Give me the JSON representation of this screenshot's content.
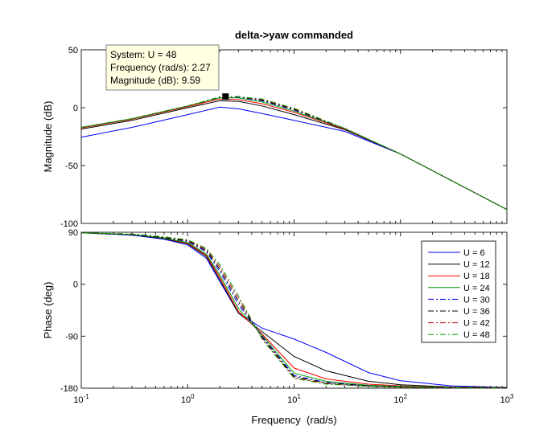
{
  "chart_data": [
    {
      "type": "line",
      "panel": "magnitude",
      "title": "delta->yaw commanded",
      "xlabel": "",
      "ylabel": "Magnitude (dB)",
      "xscale": "log",
      "xlim": [
        0.1,
        1000
      ],
      "ylim": [
        -100,
        50
      ],
      "yticks": [
        "50",
        "0",
        "-50",
        "-100"
      ],
      "grid": false,
      "series": [
        {
          "name": "U = 6",
          "x": [
            0.1,
            0.3,
            1,
            2,
            3,
            5,
            10,
            30,
            100,
            1000
          ],
          "values": [
            -25.5,
            -17,
            -6,
            0.5,
            -1,
            -5,
            -11,
            -20.5,
            -40,
            -88
          ]
        },
        {
          "name": "U = 12",
          "x": [
            0.1,
            0.3,
            1,
            2,
            3,
            5,
            10,
            30,
            100,
            1000
          ],
          "values": [
            -18.5,
            -11,
            0,
            6,
            5.5,
            1.5,
            -6,
            -19,
            -40,
            -88
          ]
        },
        {
          "name": "U = 18",
          "x": [
            0.1,
            0.3,
            1,
            2,
            3,
            5,
            10,
            30,
            100,
            1000
          ],
          "values": [
            -17.5,
            -10,
            1,
            7.5,
            7,
            3.5,
            -4,
            -18.5,
            -40,
            -88
          ]
        },
        {
          "name": "U = 24",
          "x": [
            0.1,
            0.3,
            1,
            2,
            3,
            5,
            10,
            30,
            100,
            1000
          ],
          "values": [
            -17,
            -9.5,
            1.5,
            8.5,
            8.5,
            5,
            -3,
            -18,
            -40,
            -88
          ]
        },
        {
          "name": "U = 30",
          "x": [
            0.1,
            0.3,
            1,
            2,
            3,
            5,
            10,
            30,
            100,
            1000
          ],
          "values": [
            -17,
            -9.5,
            1.5,
            9,
            9,
            6,
            -2,
            -18,
            -40,
            -88
          ]
        },
        {
          "name": "U = 36",
          "x": [
            0.1,
            0.3,
            1,
            2,
            3,
            5,
            10,
            30,
            100,
            1000
          ],
          "values": [
            -17,
            -9.5,
            1.5,
            9,
            9.5,
            6.5,
            -1.5,
            -18,
            -40,
            -88
          ]
        },
        {
          "name": "U = 42",
          "x": [
            0.1,
            0.3,
            1,
            2,
            3,
            5,
            10,
            30,
            100,
            1000
          ],
          "values": [
            -17,
            -9.5,
            1.5,
            9.2,
            9.5,
            7,
            -1,
            -18,
            -40,
            -88
          ]
        },
        {
          "name": "U = 48",
          "x": [
            0.1,
            0.3,
            1,
            2,
            3,
            5,
            10,
            30,
            100,
            1000
          ],
          "values": [
            -17,
            -9.5,
            1.5,
            9.4,
            9.6,
            7.5,
            -0.5,
            -18,
            -40,
            -88
          ]
        }
      ],
      "marker": {
        "x": 2.27,
        "y": 9.59
      },
      "datatip": {
        "line1": "System: U = 48",
        "line2": "Frequency (rad/s): 2.27",
        "line3": "Magnitude (dB): 9.59"
      }
    },
    {
      "type": "line",
      "panel": "phase",
      "xlabel": "Frequency  (rad/s)",
      "ylabel": "Phase (deg)",
      "xscale": "log",
      "xlim": [
        0.1,
        1000
      ],
      "ylim": [
        -180,
        90
      ],
      "yticks": [
        "90",
        "0",
        "-90",
        "-180"
      ],
      "xticks": [
        {
          "base": "10",
          "exp": "-1",
          "value": 0.1
        },
        {
          "base": "10",
          "exp": "0",
          "value": 1
        },
        {
          "base": "10",
          "exp": "1",
          "value": 10
        },
        {
          "base": "10",
          "exp": "2",
          "value": 100
        },
        {
          "base": "10",
          "exp": "3",
          "value": 1000
        }
      ],
      "grid": false,
      "legend_position": "right",
      "series": [
        {
          "name": "U = 6",
          "x": [
            0.1,
            0.3,
            0.6,
            1,
            1.5,
            2,
            3,
            5,
            10,
            20,
            50,
            100,
            300,
            1000
          ],
          "values": [
            89,
            85,
            78,
            68,
            45,
            5,
            -50,
            -76,
            -95,
            -118,
            -153,
            -167,
            -176,
            -179
          ]
        },
        {
          "name": "U = 12",
          "x": [
            0.1,
            0.3,
            0.6,
            1,
            1.5,
            2,
            3,
            5,
            10,
            20,
            50,
            100,
            300,
            1000
          ],
          "values": [
            89,
            86,
            79,
            70,
            48,
            8,
            -50,
            -82,
            -125,
            -150,
            -168,
            -174,
            -178,
            -179
          ]
        },
        {
          "name": "U = 18",
          "x": [
            0.1,
            0.3,
            0.6,
            1,
            1.5,
            2,
            3,
            5,
            10,
            20,
            50,
            100,
            300,
            1000
          ],
          "values": [
            89,
            86,
            80,
            71,
            50,
            12,
            -47,
            -86,
            -145,
            -164,
            -173,
            -176,
            -179,
            -180
          ]
        },
        {
          "name": "U = 24",
          "x": [
            0.1,
            0.3,
            0.6,
            1,
            1.5,
            2,
            3,
            5,
            10,
            20,
            50,
            100,
            300,
            1000
          ],
          "values": [
            89,
            86,
            80,
            72,
            52,
            16,
            -42,
            -88,
            -154,
            -168,
            -175,
            -177,
            -179,
            -180
          ]
        },
        {
          "name": "U = 30",
          "x": [
            0.1,
            0.3,
            0.6,
            1,
            1.5,
            2,
            3,
            5,
            10,
            20,
            50,
            100,
            300,
            1000
          ],
          "values": [
            89,
            86,
            81,
            74,
            56,
            22,
            -35,
            -90,
            -158,
            -170,
            -176,
            -178,
            -179,
            -180
          ]
        },
        {
          "name": "U = 36",
          "x": [
            0.1,
            0.3,
            0.6,
            1,
            1.5,
            2,
            3,
            5,
            10,
            20,
            50,
            100,
            300,
            1000
          ],
          "values": [
            89,
            86,
            81,
            75,
            58,
            26,
            -30,
            -92,
            -160,
            -171,
            -176,
            -178,
            -179,
            -180
          ]
        },
        {
          "name": "U = 42",
          "x": [
            0.1,
            0.3,
            0.6,
            1,
            1.5,
            2,
            3,
            5,
            10,
            20,
            50,
            100,
            300,
            1000
          ],
          "values": [
            89,
            87,
            82,
            76,
            60,
            30,
            -25,
            -93,
            -162,
            -172,
            -177,
            -178,
            -179,
            -180
          ]
        },
        {
          "name": "U = 48",
          "x": [
            0.1,
            0.3,
            0.6,
            1,
            1.5,
            2,
            3,
            5,
            10,
            20,
            50,
            100,
            300,
            1000
          ],
          "values": [
            89,
            87,
            82,
            77,
            62,
            34,
            -20,
            -95,
            -163,
            -173,
            -177,
            -178,
            -179,
            -180
          ]
        }
      ]
    }
  ],
  "styles": {
    "series": [
      {
        "color": "#0000ff",
        "dash": ""
      },
      {
        "color": "#000000",
        "dash": ""
      },
      {
        "color": "#ff0000",
        "dash": ""
      },
      {
        "color": "#00a000",
        "dash": ""
      },
      {
        "color": "#0000ff",
        "dash": "7,3,2,3"
      },
      {
        "color": "#000000",
        "dash": "7,3,2,3"
      },
      {
        "color": "#c00000",
        "dash": "7,3,2,3"
      },
      {
        "color": "#00a000",
        "dash": "7,3,2,3"
      }
    ],
    "datatip_bg": "#ffffe1"
  }
}
